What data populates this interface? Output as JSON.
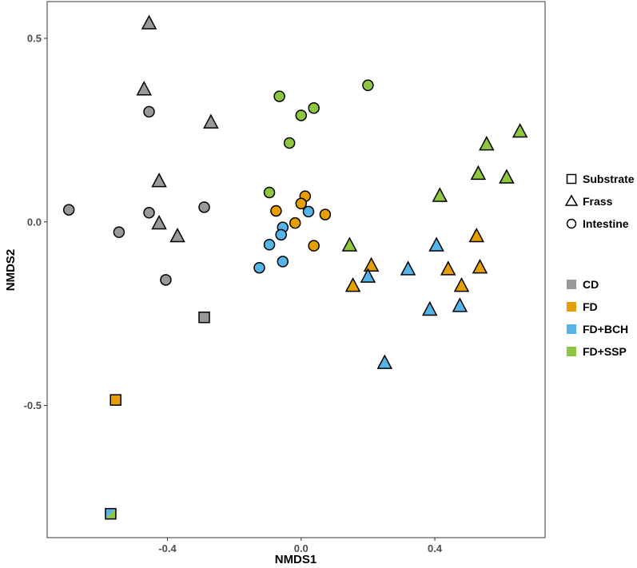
{
  "chart_data": {
    "type": "scatter",
    "title": "",
    "xlabel": "NMDS1",
    "ylabel": "NMDS2",
    "xlim": [
      -0.76,
      0.73
    ],
    "ylim": [
      -0.86,
      0.6
    ],
    "x_ticks": [
      -0.4,
      0.0,
      0.4
    ],
    "y_ticks": [
      -0.5,
      0.0,
      0.5
    ],
    "x_tick_labels": [
      "-0.4",
      "0.0",
      "0.4"
    ],
    "y_tick_labels": [
      "-0.5",
      "0.0",
      "0.5"
    ],
    "grid": false,
    "shape_legend": {
      "position": "right",
      "entries": [
        {
          "label": "Substrate",
          "shape": "square"
        },
        {
          "label": "Frass",
          "shape": "triangle"
        },
        {
          "label": "Intestine",
          "shape": "circle"
        }
      ]
    },
    "color_legend": {
      "position": "right",
      "entries": [
        {
          "label": "CD",
          "color": "#999999"
        },
        {
          "label": "FD",
          "color": "#E69F00"
        },
        {
          "label": "FD+BCH",
          "color": "#56B4E9"
        },
        {
          "label": "FD+SSP",
          "color": "#8DC63F"
        }
      ]
    },
    "series": [
      {
        "name": "CD",
        "color": "#999999",
        "points": [
          {
            "shape": "square",
            "x": -0.29,
            "y": -0.26
          },
          {
            "shape": "triangle",
            "x": -0.455,
            "y": 0.54
          },
          {
            "shape": "triangle",
            "x": -0.47,
            "y": 0.36
          },
          {
            "shape": "triangle",
            "x": -0.27,
            "y": 0.27
          },
          {
            "shape": "triangle",
            "x": -0.425,
            "y": 0.11
          },
          {
            "shape": "triangle",
            "x": -0.425,
            "y": -0.005
          },
          {
            "shape": "triangle",
            "x": -0.37,
            "y": -0.04
          },
          {
            "shape": "circle",
            "x": -0.455,
            "y": 0.3
          },
          {
            "shape": "circle",
            "x": -0.695,
            "y": 0.033
          },
          {
            "shape": "circle",
            "x": -0.455,
            "y": 0.025
          },
          {
            "shape": "circle",
            "x": -0.29,
            "y": 0.04
          },
          {
            "shape": "circle",
            "x": -0.545,
            "y": -0.028
          },
          {
            "shape": "circle",
            "x": -0.405,
            "y": -0.158
          }
        ]
      },
      {
        "name": "FD",
        "color": "#E69F00",
        "points": [
          {
            "shape": "square",
            "x": -0.555,
            "y": -0.485
          },
          {
            "shape": "triangle",
            "x": 0.525,
            "y": -0.04
          },
          {
            "shape": "triangle",
            "x": 0.21,
            "y": -0.12
          },
          {
            "shape": "triangle",
            "x": 0.44,
            "y": -0.13
          },
          {
            "shape": "triangle",
            "x": 0.535,
            "y": -0.125
          },
          {
            "shape": "triangle",
            "x": 0.155,
            "y": -0.175
          },
          {
            "shape": "triangle",
            "x": 0.48,
            "y": -0.175
          },
          {
            "shape": "circle",
            "x": 0.012,
            "y": 0.07
          },
          {
            "shape": "circle",
            "x": 0.0,
            "y": 0.05
          },
          {
            "shape": "circle",
            "x": -0.075,
            "y": 0.03
          },
          {
            "shape": "circle",
            "x": 0.072,
            "y": 0.02
          },
          {
            "shape": "circle",
            "x": -0.018,
            "y": -0.003
          },
          {
            "shape": "circle",
            "x": 0.038,
            "y": -0.065
          }
        ]
      },
      {
        "name": "FD+BCH",
        "color": "#56B4E9",
        "points": [
          {
            "shape": "triangle",
            "x": 0.405,
            "y": -0.065
          },
          {
            "shape": "triangle",
            "x": 0.32,
            "y": -0.13
          },
          {
            "shape": "triangle",
            "x": 0.2,
            "y": -0.15
          },
          {
            "shape": "triangle",
            "x": 0.475,
            "y": -0.23
          },
          {
            "shape": "triangle",
            "x": 0.385,
            "y": -0.24
          },
          {
            "shape": "triangle",
            "x": 0.25,
            "y": -0.385
          },
          {
            "shape": "circle",
            "x": 0.022,
            "y": 0.028
          },
          {
            "shape": "circle",
            "x": -0.055,
            "y": -0.015
          },
          {
            "shape": "circle",
            "x": -0.06,
            "y": -0.035
          },
          {
            "shape": "circle",
            "x": -0.095,
            "y": -0.062
          },
          {
            "shape": "circle",
            "x": -0.055,
            "y": -0.108
          },
          {
            "shape": "circle",
            "x": -0.125,
            "y": -0.125
          }
        ]
      },
      {
        "name": "FD+SSP",
        "color": "#8DC63F",
        "points": [
          {
            "shape": "triangle",
            "x": 0.655,
            "y": 0.245
          },
          {
            "shape": "triangle",
            "x": 0.555,
            "y": 0.21
          },
          {
            "shape": "triangle",
            "x": 0.53,
            "y": 0.13
          },
          {
            "shape": "triangle",
            "x": 0.615,
            "y": 0.12
          },
          {
            "shape": "triangle",
            "x": 0.415,
            "y": 0.07
          },
          {
            "shape": "triangle",
            "x": 0.145,
            "y": -0.065
          },
          {
            "shape": "circle",
            "x": 0.2,
            "y": 0.372
          },
          {
            "shape": "circle",
            "x": -0.065,
            "y": 0.342
          },
          {
            "shape": "circle",
            "x": 0.038,
            "y": 0.31
          },
          {
            "shape": "circle",
            "x": 0.0,
            "y": 0.29
          },
          {
            "shape": "circle",
            "x": -0.035,
            "y": 0.215
          },
          {
            "shape": "circle",
            "x": -0.095,
            "y": 0.08
          }
        ]
      },
      {
        "name": "FD+BCH / FD+SSP",
        "color": "#56B4E9",
        "color2": "#8DC63F",
        "points": [
          {
            "shape": "square-split",
            "x": -0.57,
            "y": -0.795
          }
        ]
      }
    ]
  }
}
